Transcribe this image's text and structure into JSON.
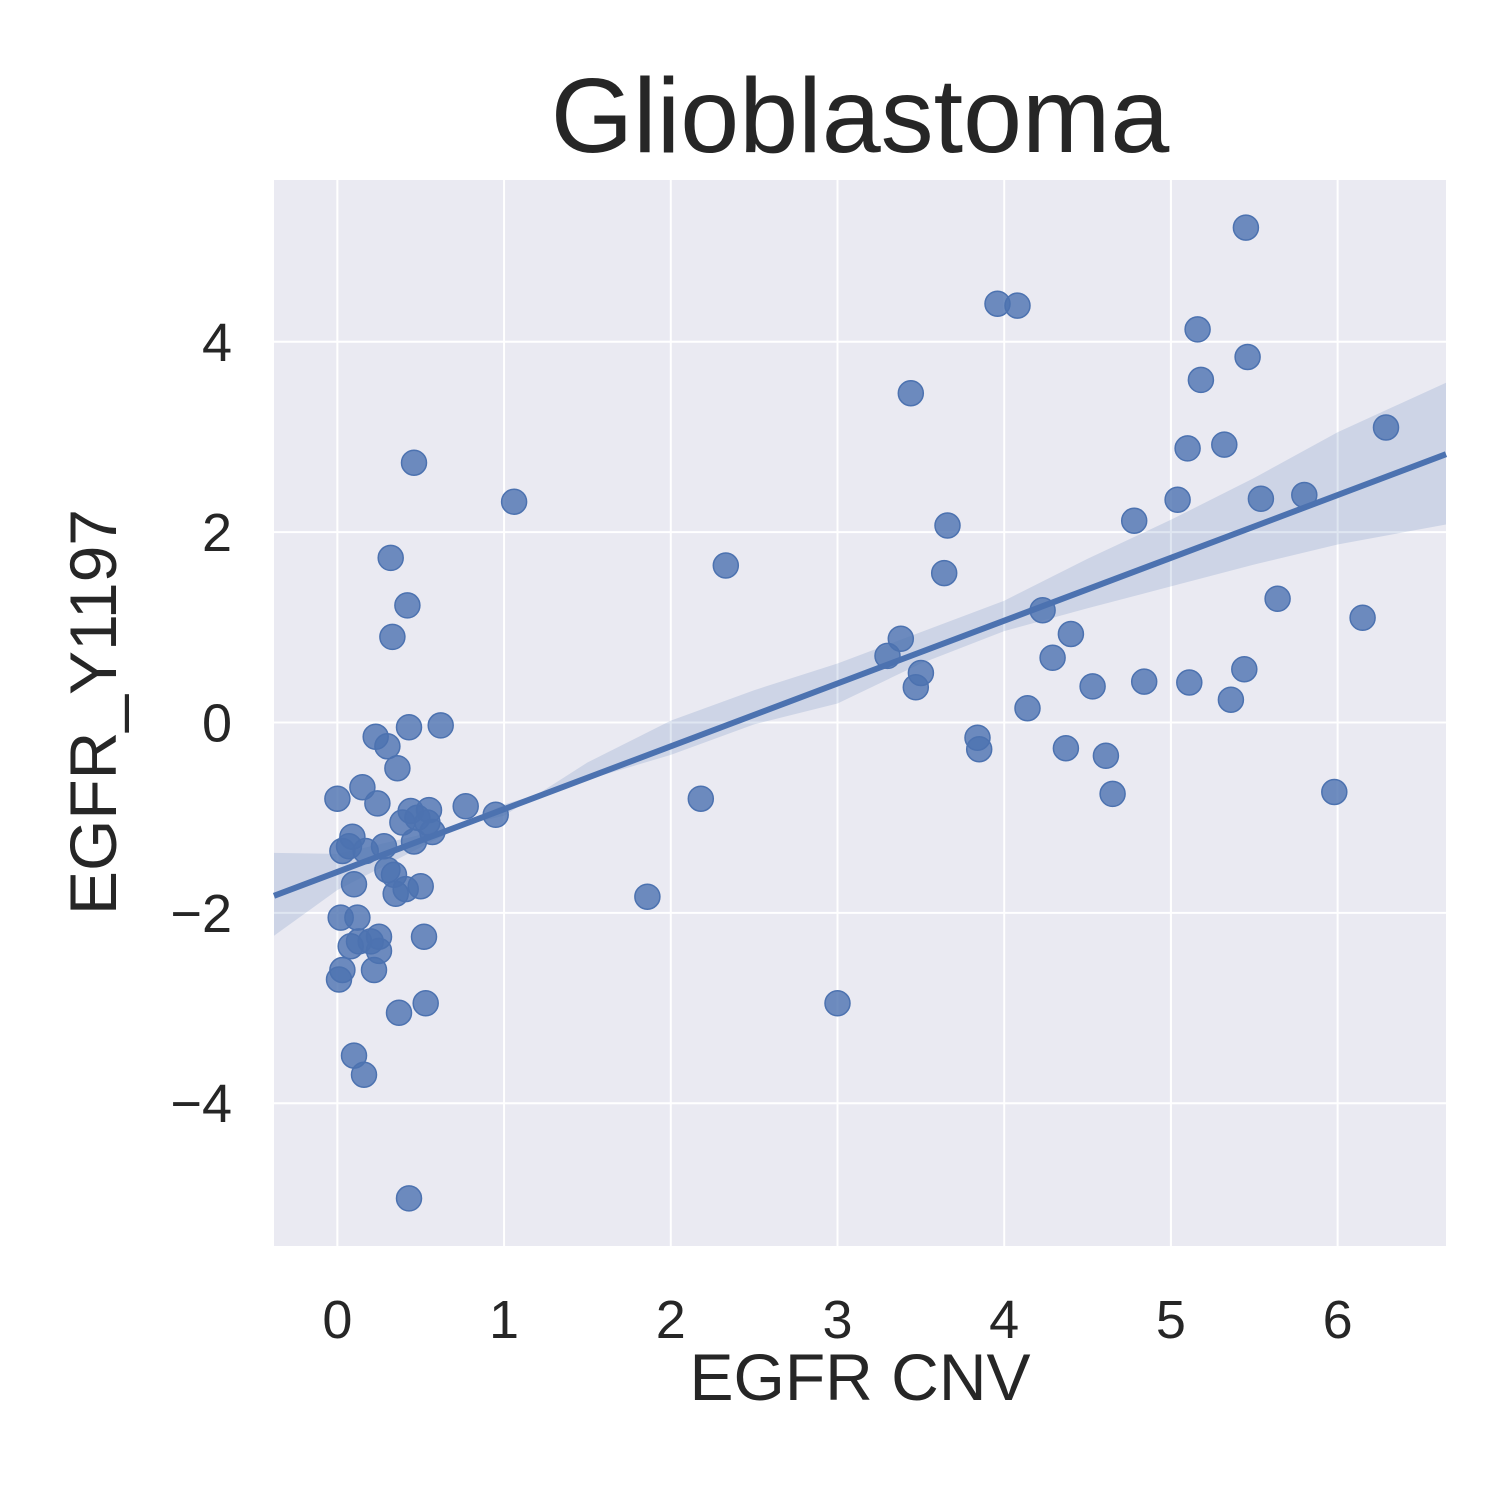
{
  "colors": {
    "plot_background": "#eaeaf2",
    "grid": "#ffffff",
    "series": "#4c72b0",
    "text": "#262626"
  },
  "chart_data": {
    "type": "scatter",
    "title": "Glioblastoma",
    "xlabel": "EGFR CNV",
    "ylabel": "EGFR_Y1197",
    "xlim": [
      -0.38,
      6.65
    ],
    "ylim": [
      -5.5,
      5.7
    ],
    "xticks": [
      0,
      1,
      2,
      3,
      4,
      5,
      6
    ],
    "yticks": [
      -4,
      -2,
      0,
      2,
      4
    ],
    "grid": true,
    "points": [
      [
        0.0,
        -0.8
      ],
      [
        0.01,
        -2.7
      ],
      [
        0.02,
        -2.05
      ],
      [
        0.03,
        -2.6
      ],
      [
        0.03,
        -1.35
      ],
      [
        0.07,
        -1.3
      ],
      [
        0.08,
        -2.35
      ],
      [
        0.09,
        -1.2
      ],
      [
        0.1,
        -1.7
      ],
      [
        0.1,
        -3.5
      ],
      [
        0.12,
        -2.05
      ],
      [
        0.13,
        -2.3
      ],
      [
        0.15,
        -0.68
      ],
      [
        0.16,
        -3.7
      ],
      [
        0.17,
        -1.35
      ],
      [
        0.2,
        -2.3
      ],
      [
        0.22,
        -2.6
      ],
      [
        0.23,
        -0.15
      ],
      [
        0.24,
        -0.85
      ],
      [
        0.25,
        -2.4
      ],
      [
        0.25,
        -2.25
      ],
      [
        0.28,
        -1.3
      ],
      [
        0.3,
        -0.25
      ],
      [
        0.3,
        -1.55
      ],
      [
        0.32,
        1.73
      ],
      [
        0.33,
        0.9
      ],
      [
        0.34,
        -1.6
      ],
      [
        0.35,
        -1.8
      ],
      [
        0.36,
        -0.48
      ],
      [
        0.37,
        -3.05
      ],
      [
        0.39,
        -1.05
      ],
      [
        0.41,
        -1.75
      ],
      [
        0.42,
        1.23
      ],
      [
        0.43,
        -0.05
      ],
      [
        0.43,
        -5.0
      ],
      [
        0.44,
        -0.93
      ],
      [
        0.46,
        -1.25
      ],
      [
        0.46,
        2.73
      ],
      [
        0.48,
        -1.0
      ],
      [
        0.5,
        -1.72
      ],
      [
        0.52,
        -2.25
      ],
      [
        0.53,
        -2.95
      ],
      [
        0.54,
        -1.05
      ],
      [
        0.55,
        -0.92
      ],
      [
        0.57,
        -1.15
      ],
      [
        0.62,
        -0.03
      ],
      [
        0.77,
        -0.88
      ],
      [
        0.95,
        -0.97
      ],
      [
        1.06,
        2.32
      ],
      [
        1.86,
        -1.83
      ],
      [
        2.18,
        -0.8
      ],
      [
        2.33,
        1.65
      ],
      [
        3.0,
        -2.95
      ],
      [
        3.3,
        0.7
      ],
      [
        3.38,
        0.88
      ],
      [
        3.44,
        3.46
      ],
      [
        3.47,
        0.37
      ],
      [
        3.5,
        0.52
      ],
      [
        3.64,
        1.57
      ],
      [
        3.66,
        2.07
      ],
      [
        3.84,
        -0.16
      ],
      [
        3.85,
        -0.28
      ],
      [
        3.96,
        4.4
      ],
      [
        4.08,
        4.38
      ],
      [
        4.14,
        0.15
      ],
      [
        4.23,
        1.18
      ],
      [
        4.29,
        0.68
      ],
      [
        4.37,
        -0.27
      ],
      [
        4.4,
        0.93
      ],
      [
        4.53,
        0.38
      ],
      [
        4.61,
        -0.35
      ],
      [
        4.65,
        -0.75
      ],
      [
        4.78,
        2.12
      ],
      [
        4.84,
        0.43
      ],
      [
        5.04,
        2.34
      ],
      [
        5.1,
        2.88
      ],
      [
        5.11,
        0.42
      ],
      [
        5.16,
        4.13
      ],
      [
        5.18,
        3.6
      ],
      [
        5.32,
        2.92
      ],
      [
        5.36,
        0.24
      ],
      [
        5.44,
        0.56
      ],
      [
        5.45,
        5.2
      ],
      [
        5.46,
        3.84
      ],
      [
        5.54,
        2.35
      ],
      [
        5.64,
        1.3
      ],
      [
        5.8,
        2.39
      ],
      [
        5.98,
        -0.73
      ],
      [
        6.15,
        1.1
      ],
      [
        6.29,
        3.1
      ]
    ],
    "regression": {
      "intercept": -1.57,
      "slope": 0.66,
      "ci_band": [
        [
          -0.38,
          -2.24,
          -1.37
        ],
        [
          0.0,
          -1.76,
          -1.38
        ],
        [
          1.0,
          -0.86,
          -0.98
        ],
        [
          1.5,
          -0.6,
          -0.42
        ],
        [
          2.0,
          -0.34,
          0.02
        ],
        [
          2.5,
          -0.02,
          0.34
        ],
        [
          3.0,
          0.2,
          0.62
        ],
        [
          3.5,
          0.62,
          0.95
        ],
        [
          4.0,
          0.96,
          1.28
        ],
        [
          4.5,
          1.2,
          1.72
        ],
        [
          5.0,
          1.43,
          2.13
        ],
        [
          5.5,
          1.66,
          2.57
        ],
        [
          6.0,
          1.87,
          3.05
        ],
        [
          6.65,
          2.08,
          3.57
        ]
      ]
    }
  }
}
